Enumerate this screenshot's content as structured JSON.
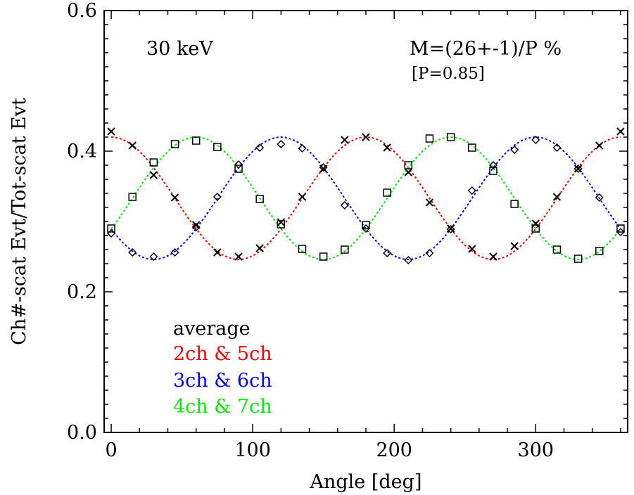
{
  "chart_data": {
    "type": "scatter",
    "xlabel": "Angle [deg]",
    "ylabel": "Ch#-scat Evt/Tot-scat Evt",
    "xlim": [
      -5,
      365
    ],
    "ylim": [
      0.0,
      0.6
    ],
    "x_ticks": [
      0,
      100,
      200,
      300
    ],
    "x_tick_labels": [
      "0",
      "100",
      "200",
      "300"
    ],
    "y_ticks": [
      0.0,
      0.2,
      0.4,
      0.6
    ],
    "y_tick_labels": [
      "0.0",
      "0.2",
      "0.4",
      "0.6"
    ],
    "grid": false,
    "annotations": {
      "energy": "30 keV",
      "modulation": "M=(26+-1)/P %",
      "polarization": "[P=0.85]"
    },
    "legend": [
      "average",
      "2ch & 5ch",
      "3ch & 6ch",
      "4ch & 7ch"
    ],
    "legend_placement": "bottom-left",
    "x": [
      0,
      15,
      30,
      45,
      60,
      75,
      90,
      105,
      120,
      135,
      150,
      165,
      180,
      195,
      210,
      225,
      240,
      255,
      270,
      285,
      300,
      315,
      330,
      345,
      360
    ],
    "series": [
      {
        "name": "2ch & 5ch",
        "marker": "x",
        "color": "#ff0000",
        "values": [
          0.428,
          0.408,
          0.366,
          0.334,
          0.295,
          0.256,
          0.25,
          0.262,
          0.299,
          0.335,
          0.375,
          0.416,
          0.42,
          0.405,
          0.37,
          0.327,
          0.29,
          0.261,
          0.25,
          0.265,
          0.297,
          0.335,
          0.375,
          0.408,
          0.428
        ],
        "fit": {
          "mean": 0.333,
          "amplitude": 0.087,
          "phase_deg": 0
        }
      },
      {
        "name": "3ch & 6ch",
        "marker": "diamond",
        "color": "#0000ff",
        "values": [
          0.283,
          0.256,
          0.25,
          0.256,
          0.292,
          0.335,
          0.381,
          0.405,
          0.41,
          0.404,
          0.377,
          0.323,
          0.29,
          0.255,
          0.245,
          0.255,
          0.289,
          0.344,
          0.38,
          0.402,
          0.416,
          0.405,
          0.375,
          0.334,
          0.285
        ],
        "fit": {
          "mean": 0.333,
          "amplitude": 0.087,
          "phase_deg": 120
        }
      },
      {
        "name": "4ch & 7ch",
        "marker": "square",
        "color": "#00ee00",
        "values": [
          0.29,
          0.335,
          0.384,
          0.41,
          0.415,
          0.406,
          0.375,
          0.332,
          0.296,
          0.261,
          0.25,
          0.26,
          0.295,
          0.341,
          0.38,
          0.418,
          0.42,
          0.405,
          0.372,
          0.325,
          0.29,
          0.26,
          0.247,
          0.258,
          0.29
        ],
        "fit": {
          "mean": 0.333,
          "amplitude": 0.087,
          "phase_deg": 240
        }
      }
    ]
  },
  "colors": {
    "average": "#000000",
    "red": "#ff0000",
    "blue": "#0000ff",
    "green": "#00ee00"
  }
}
